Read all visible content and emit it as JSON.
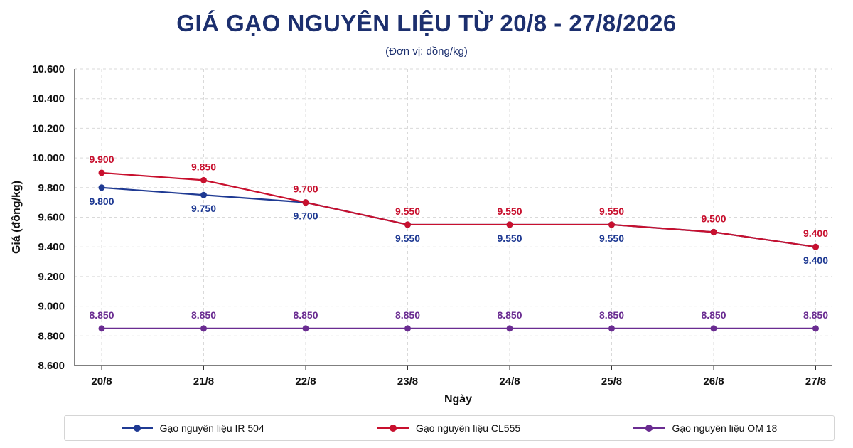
{
  "header": {
    "title": "GIÁ GẠO NGUYÊN LIỆU TỪ 20/8 - 27/8/2026",
    "subtitle": "(Đơn vị: đồng/kg)"
  },
  "chart_data": {
    "type": "line",
    "title": "GIÁ GẠO NGUYÊN LIỆU TỪ 20/8 - 27/8/2026",
    "subtitle": "(Đơn vị: đồng/kg)",
    "xlabel": "Ngày",
    "ylabel": "Giá (đồng/kg)",
    "categories": [
      "20/8",
      "21/8",
      "22/8",
      "23/8",
      "24/8",
      "25/8",
      "26/8",
      "27/8"
    ],
    "ylim": [
      8600,
      10600
    ],
    "yticks": [
      8600,
      8800,
      9000,
      9200,
      9400,
      9600,
      9800,
      10000,
      10200,
      10400,
      10600
    ],
    "ytick_labels": [
      "8.600",
      "8.800",
      "9.000",
      "9.200",
      "9.400",
      "9.600",
      "9.800",
      "10.000",
      "10.200",
      "10.400",
      "10.600"
    ],
    "grid": true,
    "legend": "bottom",
    "series": [
      {
        "name": "Gạo nguyên liệu IR 504",
        "color": "#1f3a93",
        "values": [
          9800,
          9750,
          9700,
          9550,
          9550,
          9550,
          9500,
          9400
        ],
        "labels": [
          "9.800",
          "9.750",
          "9.700",
          "9.550",
          "9.550",
          "9.550",
          "",
          "9.400"
        ],
        "label_position": "below"
      },
      {
        "name": "Gạo nguyên liệu CL555",
        "color": "#c8102e",
        "values": [
          9900,
          9850,
          9700,
          9550,
          9550,
          9550,
          9500,
          9400
        ],
        "labels": [
          "9.900",
          "9.850",
          "9.700",
          "9.550",
          "9.550",
          "9.550",
          "9.500",
          "9.400"
        ],
        "label_position": "above"
      },
      {
        "name": "Gạo nguyên liệu OM 18",
        "color": "#6a2c91",
        "values": [
          8850,
          8850,
          8850,
          8850,
          8850,
          8850,
          8850,
          8850
        ],
        "labels": [
          "8.850",
          "8.850",
          "8.850",
          "8.850",
          "8.850",
          "8.850",
          "8.850",
          "8.850"
        ],
        "label_position": "above"
      }
    ]
  }
}
